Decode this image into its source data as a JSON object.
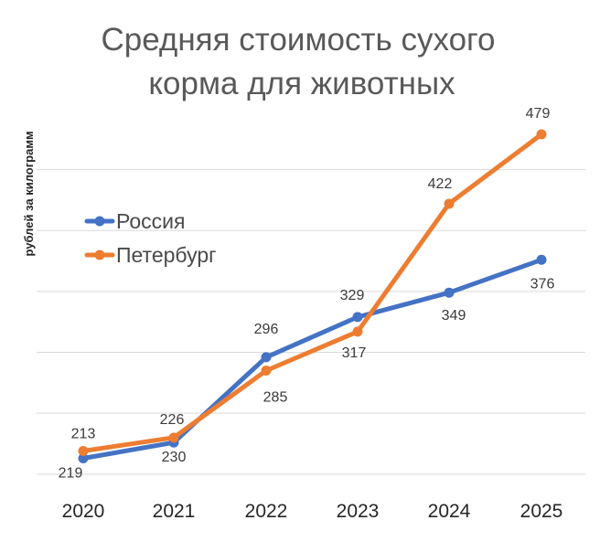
{
  "chart_data": {
    "type": "line",
    "title": [
      "Средняя стоимость сухого",
      "корма для животных"
    ],
    "xlabel": "",
    "ylabel": "рублей за килограмм",
    "categories": [
      "2020",
      "2021",
      "2022",
      "2023",
      "2024",
      "2025"
    ],
    "series": [
      {
        "name": "Россия",
        "color": "#4472C4",
        "values": [
          213,
          226,
          296,
          329,
          349,
          376
        ]
      },
      {
        "name": "Петербург",
        "color": "#ED7D31",
        "values": [
          219,
          230,
          285,
          317,
          422,
          479
        ]
      }
    ],
    "ylim": [
      200,
      500
    ],
    "grid": true,
    "legend": "left"
  }
}
